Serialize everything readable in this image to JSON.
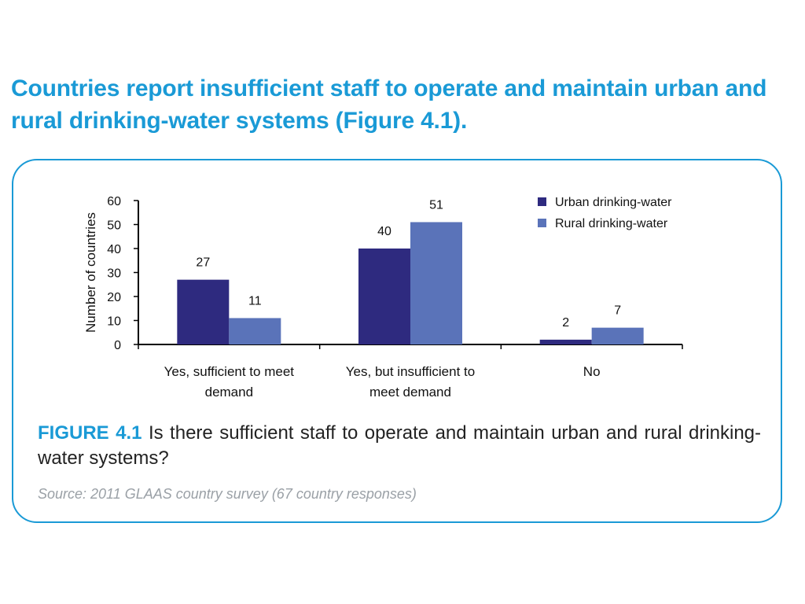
{
  "headline": "Countries report insufficient staff to operate and maintain urban and rural drinking-water systems (Figure 4.1).",
  "figure": {
    "label": "FIGURE 4.1",
    "caption": "Is there sufficient staff to operate and maintain urban and rural drinking-water systems?",
    "source": "Source: 2011 GLAAS country survey (67 country responses)"
  },
  "chart_data": {
    "type": "bar",
    "categories": [
      [
        "Yes, sufficient to meet",
        "demand"
      ],
      [
        "Yes, but insufficient to",
        "meet demand"
      ],
      [
        "No"
      ]
    ],
    "series": [
      {
        "name": "Urban drinking-water",
        "values": [
          27,
          40,
          2
        ],
        "color": "#2e2a7f"
      },
      {
        "name": "Rural drinking-water",
        "values": [
          11,
          51,
          7
        ],
        "color": "#5a73b9"
      }
    ],
    "ylabel": "Number of countries",
    "ylim": [
      0,
      60
    ],
    "yticks": [
      0,
      10,
      20,
      30,
      40,
      50,
      60
    ],
    "legend_position": "top-right",
    "grid": false
  }
}
